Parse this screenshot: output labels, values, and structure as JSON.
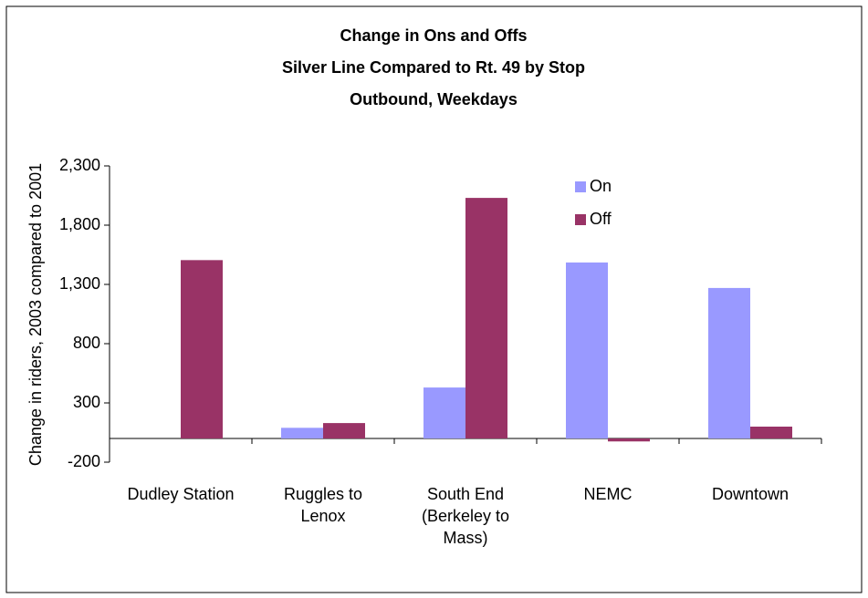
{
  "chart_data": {
    "type": "bar",
    "title": "Change in Ons and Offs",
    "subtitle": [
      "Silver Line Compared to Rt. 49 by Stop",
      "Outbound, Weekdays"
    ],
    "y_label": "Change in riders, 2003 compared to 2001",
    "categories": [
      "Dudley Station",
      "Ruggles to Lenox",
      "South End (Berkeley to Mass)",
      "NEMC",
      "Downtown"
    ],
    "series": [
      {
        "name": "On",
        "color": "#9999ff",
        "values": [
          0,
          90,
          430,
          1485,
          1270
        ]
      },
      {
        "name": "Off",
        "color": "#993366",
        "values": [
          1505,
          130,
          2030,
          -25,
          100
        ]
      }
    ],
    "ylim": [
      -200,
      2300
    ],
    "yticks": [
      -200,
      300,
      800,
      {
        "value": 1300,
        "label": "1,300"
      },
      {
        "value": 1800,
        "label": "1,800"
      },
      {
        "value": 2300,
        "label": "2,300"
      }
    ],
    "legend": "upper-right"
  }
}
